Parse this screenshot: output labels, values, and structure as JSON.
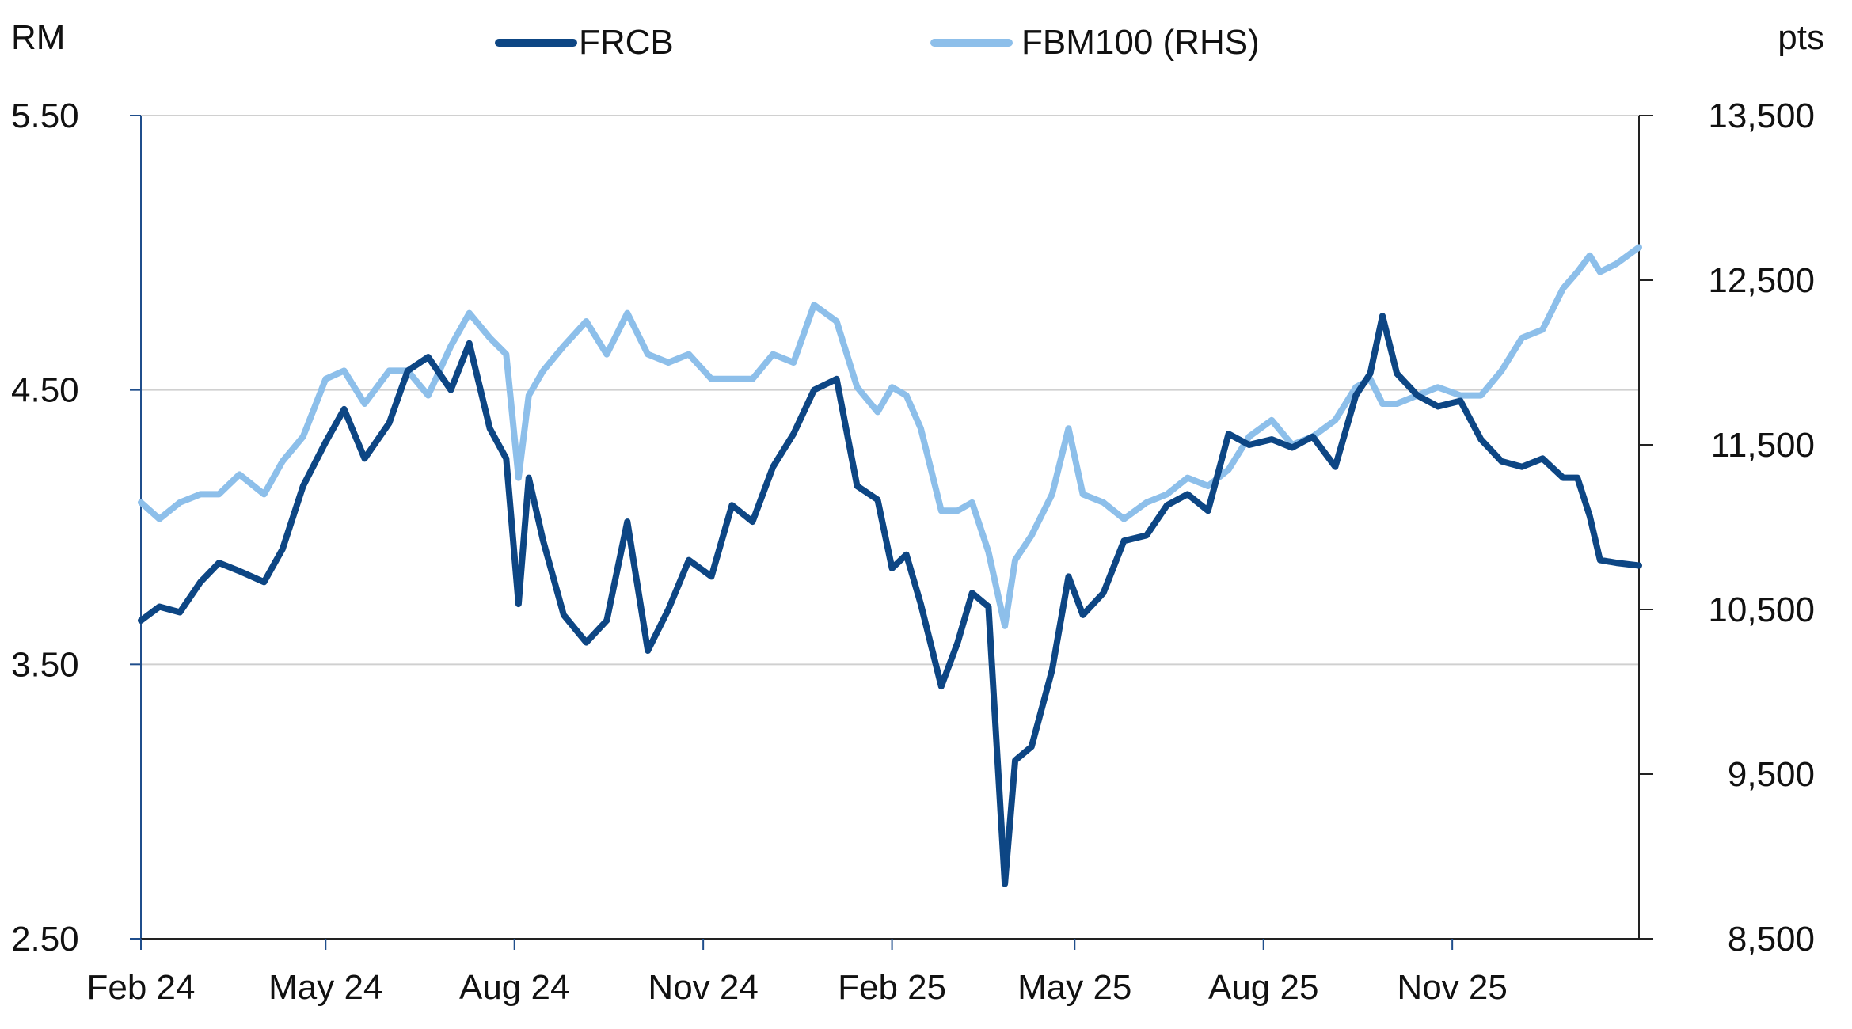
{
  "chart_data": {
    "type": "line",
    "left_unit": "RM",
    "right_unit": "pts",
    "y_left_ticks": [
      "5.50",
      "4.50",
      "3.50",
      "2.50"
    ],
    "y_left_range": [
      2.5,
      5.5
    ],
    "y_right_ticks": [
      "13,500",
      "12,500",
      "11,500",
      "10,500",
      "9,500",
      "8,500"
    ],
    "y_right_range": [
      8500,
      13500
    ],
    "x_ticks": [
      "Feb 24",
      "May 24",
      "Aug 24",
      "Nov 24",
      "Feb 25",
      "May 25",
      "Aug 25",
      "Nov 25"
    ],
    "x_range": [
      "2024-02-01",
      "2026-01-31"
    ],
    "grid": "horizontal",
    "legend_position": "top-center",
    "series": [
      {
        "name": "FRCB",
        "axis": "left",
        "color": "#0d4684",
        "points": [
          [
            "2024-02-01",
            3.66
          ],
          [
            "2024-02-10",
            3.71
          ],
          [
            "2024-02-20",
            3.69
          ],
          [
            "2024-03-01",
            3.8
          ],
          [
            "2024-03-10",
            3.87
          ],
          [
            "2024-03-20",
            3.84
          ],
          [
            "2024-04-01",
            3.8
          ],
          [
            "2024-04-10",
            3.92
          ],
          [
            "2024-04-20",
            4.15
          ],
          [
            "2024-05-01",
            4.31
          ],
          [
            "2024-05-10",
            4.43
          ],
          [
            "2024-05-20",
            4.25
          ],
          [
            "2024-06-01",
            4.38
          ],
          [
            "2024-06-10",
            4.57
          ],
          [
            "2024-06-20",
            4.62
          ],
          [
            "2024-07-01",
            4.5
          ],
          [
            "2024-07-10",
            4.67
          ],
          [
            "2024-07-20",
            4.36
          ],
          [
            "2024-07-28",
            4.25
          ],
          [
            "2024-08-03",
            3.72
          ],
          [
            "2024-08-08",
            4.18
          ],
          [
            "2024-08-15",
            3.95
          ],
          [
            "2024-08-25",
            3.68
          ],
          [
            "2024-09-05",
            3.58
          ],
          [
            "2024-09-15",
            3.66
          ],
          [
            "2024-09-25",
            4.02
          ],
          [
            "2024-10-05",
            3.55
          ],
          [
            "2024-10-15",
            3.7
          ],
          [
            "2024-10-25",
            3.88
          ],
          [
            "2024-11-05",
            3.82
          ],
          [
            "2024-11-15",
            4.08
          ],
          [
            "2024-11-25",
            4.02
          ],
          [
            "2024-12-05",
            4.22
          ],
          [
            "2024-12-15",
            4.34
          ],
          [
            "2024-12-25",
            4.5
          ],
          [
            "2025-01-05",
            4.54
          ],
          [
            "2025-01-15",
            4.15
          ],
          [
            "2025-01-25",
            4.1
          ],
          [
            "2025-02-01",
            3.85
          ],
          [
            "2025-02-08",
            3.9
          ],
          [
            "2025-02-15",
            3.72
          ],
          [
            "2025-02-25",
            3.42
          ],
          [
            "2025-03-05",
            3.58
          ],
          [
            "2025-03-12",
            3.76
          ],
          [
            "2025-03-20",
            3.71
          ],
          [
            "2025-03-28",
            2.7
          ],
          [
            "2025-04-02",
            3.15
          ],
          [
            "2025-04-10",
            3.2
          ],
          [
            "2025-04-20",
            3.48
          ],
          [
            "2025-04-28",
            3.82
          ],
          [
            "2025-05-05",
            3.68
          ],
          [
            "2025-05-15",
            3.76
          ],
          [
            "2025-05-25",
            3.95
          ],
          [
            "2025-06-05",
            3.97
          ],
          [
            "2025-06-15",
            4.08
          ],
          [
            "2025-06-25",
            4.12
          ],
          [
            "2025-07-05",
            4.06
          ],
          [
            "2025-07-15",
            4.34
          ],
          [
            "2025-07-25",
            4.3
          ],
          [
            "2025-08-05",
            4.32
          ],
          [
            "2025-08-15",
            4.29
          ],
          [
            "2025-08-25",
            4.33
          ],
          [
            "2025-09-05",
            4.22
          ],
          [
            "2025-09-15",
            4.48
          ],
          [
            "2025-09-22",
            4.56
          ],
          [
            "2025-09-28",
            4.77
          ],
          [
            "2025-10-05",
            4.56
          ],
          [
            "2025-10-15",
            4.48
          ],
          [
            "2025-10-25",
            4.44
          ],
          [
            "2025-11-05",
            4.46
          ],
          [
            "2025-11-15",
            4.32
          ],
          [
            "2025-11-25",
            4.24
          ],
          [
            "2025-12-05",
            4.22
          ],
          [
            "2025-12-15",
            4.25
          ],
          [
            "2025-12-25",
            4.18
          ],
          [
            "2026-01-01",
            4.18
          ],
          [
            "2026-01-07",
            4.04
          ],
          [
            "2026-01-12",
            3.88
          ],
          [
            "2026-01-20",
            3.87
          ],
          [
            "2026-01-31",
            3.86
          ]
        ]
      },
      {
        "name": "FBM100 (RHS)",
        "axis": "right",
        "color": "#8dbfea",
        "points": [
          [
            "2024-02-01",
            11.15
          ],
          [
            "2024-02-10",
            11.05
          ],
          [
            "2024-02-20",
            11.15
          ],
          [
            "2024-03-01",
            11.2
          ],
          [
            "2024-03-10",
            11.2
          ],
          [
            "2024-03-20",
            11.32
          ],
          [
            "2024-04-01",
            11.2
          ],
          [
            "2024-04-10",
            11.4
          ],
          [
            "2024-04-20",
            11.55
          ],
          [
            "2024-05-01",
            11.9
          ],
          [
            "2024-05-10",
            11.95
          ],
          [
            "2024-05-20",
            11.75
          ],
          [
            "2024-06-01",
            11.95
          ],
          [
            "2024-06-10",
            11.95
          ],
          [
            "2024-06-20",
            11.8
          ],
          [
            "2024-07-01",
            12.1
          ],
          [
            "2024-07-10",
            12.3
          ],
          [
            "2024-07-20",
            12.15
          ],
          [
            "2024-07-28",
            12.05
          ],
          [
            "2024-08-03",
            11.3
          ],
          [
            "2024-08-08",
            11.8
          ],
          [
            "2024-08-15",
            11.95
          ],
          [
            "2024-08-25",
            12.1
          ],
          [
            "2024-09-05",
            12.25
          ],
          [
            "2024-09-15",
            12.05
          ],
          [
            "2024-09-25",
            12.3
          ],
          [
            "2024-10-05",
            12.05
          ],
          [
            "2024-10-15",
            12.0
          ],
          [
            "2024-10-25",
            12.05
          ],
          [
            "2024-11-05",
            11.9
          ],
          [
            "2024-11-15",
            11.9
          ],
          [
            "2024-11-25",
            11.9
          ],
          [
            "2024-12-05",
            12.05
          ],
          [
            "2024-12-15",
            12.0
          ],
          [
            "2024-12-25",
            12.35
          ],
          [
            "2025-01-05",
            12.25
          ],
          [
            "2025-01-15",
            11.85
          ],
          [
            "2025-01-25",
            11.7
          ],
          [
            "2025-02-01",
            11.85
          ],
          [
            "2025-02-08",
            11.8
          ],
          [
            "2025-02-15",
            11.6
          ],
          [
            "2025-02-25",
            11.1
          ],
          [
            "2025-03-05",
            11.1
          ],
          [
            "2025-03-12",
            11.15
          ],
          [
            "2025-03-20",
            10.85
          ],
          [
            "2025-03-28",
            10.4
          ],
          [
            "2025-04-02",
            10.8
          ],
          [
            "2025-04-10",
            10.95
          ],
          [
            "2025-04-20",
            11.2
          ],
          [
            "2025-04-28",
            11.6
          ],
          [
            "2025-05-05",
            11.2
          ],
          [
            "2025-05-15",
            11.15
          ],
          [
            "2025-05-25",
            11.05
          ],
          [
            "2025-06-05",
            11.15
          ],
          [
            "2025-06-15",
            11.2
          ],
          [
            "2025-06-25",
            11.3
          ],
          [
            "2025-07-05",
            11.25
          ],
          [
            "2025-07-15",
            11.35
          ],
          [
            "2025-07-25",
            11.55
          ],
          [
            "2025-08-05",
            11.65
          ],
          [
            "2025-08-15",
            11.5
          ],
          [
            "2025-08-25",
            11.55
          ],
          [
            "2025-09-05",
            11.65
          ],
          [
            "2025-09-15",
            11.85
          ],
          [
            "2025-09-22",
            11.9
          ],
          [
            "2025-09-28",
            11.75
          ],
          [
            "2025-10-05",
            11.75
          ],
          [
            "2025-10-15",
            11.8
          ],
          [
            "2025-10-25",
            11.85
          ],
          [
            "2025-11-05",
            11.8
          ],
          [
            "2025-11-15",
            11.8
          ],
          [
            "2025-11-25",
            11.95
          ],
          [
            "2025-12-05",
            12.15
          ],
          [
            "2025-12-15",
            12.2
          ],
          [
            "2025-12-25",
            12.45
          ],
          [
            "2026-01-01",
            12.55
          ],
          [
            "2026-01-07",
            12.65
          ],
          [
            "2026-01-12",
            12.55
          ],
          [
            "2026-01-20",
            12.6
          ],
          [
            "2026-01-31",
            12.7
          ]
        ]
      }
    ]
  }
}
